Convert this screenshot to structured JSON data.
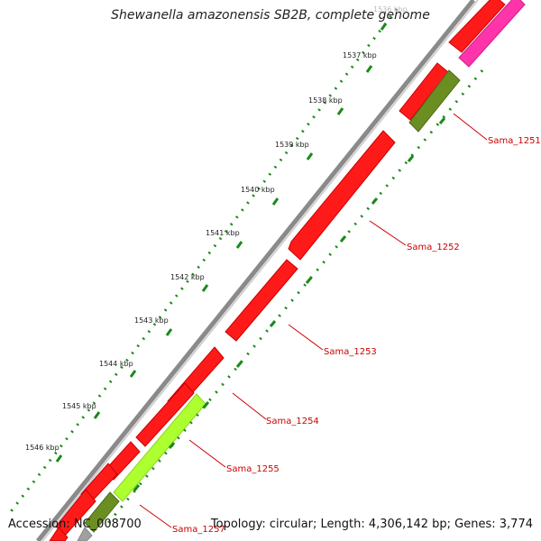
{
  "title": "Shewanella amazonensis SB2B, complete genome",
  "footer": {
    "accession": "Accession: NC_008700",
    "summary": "Topology: circular; Length: 4,306,142 bp; Genes: 3,774"
  },
  "ticks": [
    "1536 kbp",
    "1537 kbp",
    "1538 kbp",
    "1539 kbp",
    "1540 kbp",
    "1541 kbp",
    "1542 kbp",
    "1543 kbp",
    "1544 kbp",
    "1545 kbp",
    "1546 kbp"
  ],
  "gene_labels": [
    "Sama_1251",
    "Sama_1252",
    "Sama_1253",
    "Sama_1254",
    "Sama_1255",
    "Sama_1257"
  ],
  "colors": {
    "red": "#ff1a1a",
    "magenta": "#ff33aa",
    "olive": "#6b8e23",
    "lime": "#adff2f",
    "green_ring": "#1a8a1a",
    "label": "#cc0000"
  }
}
